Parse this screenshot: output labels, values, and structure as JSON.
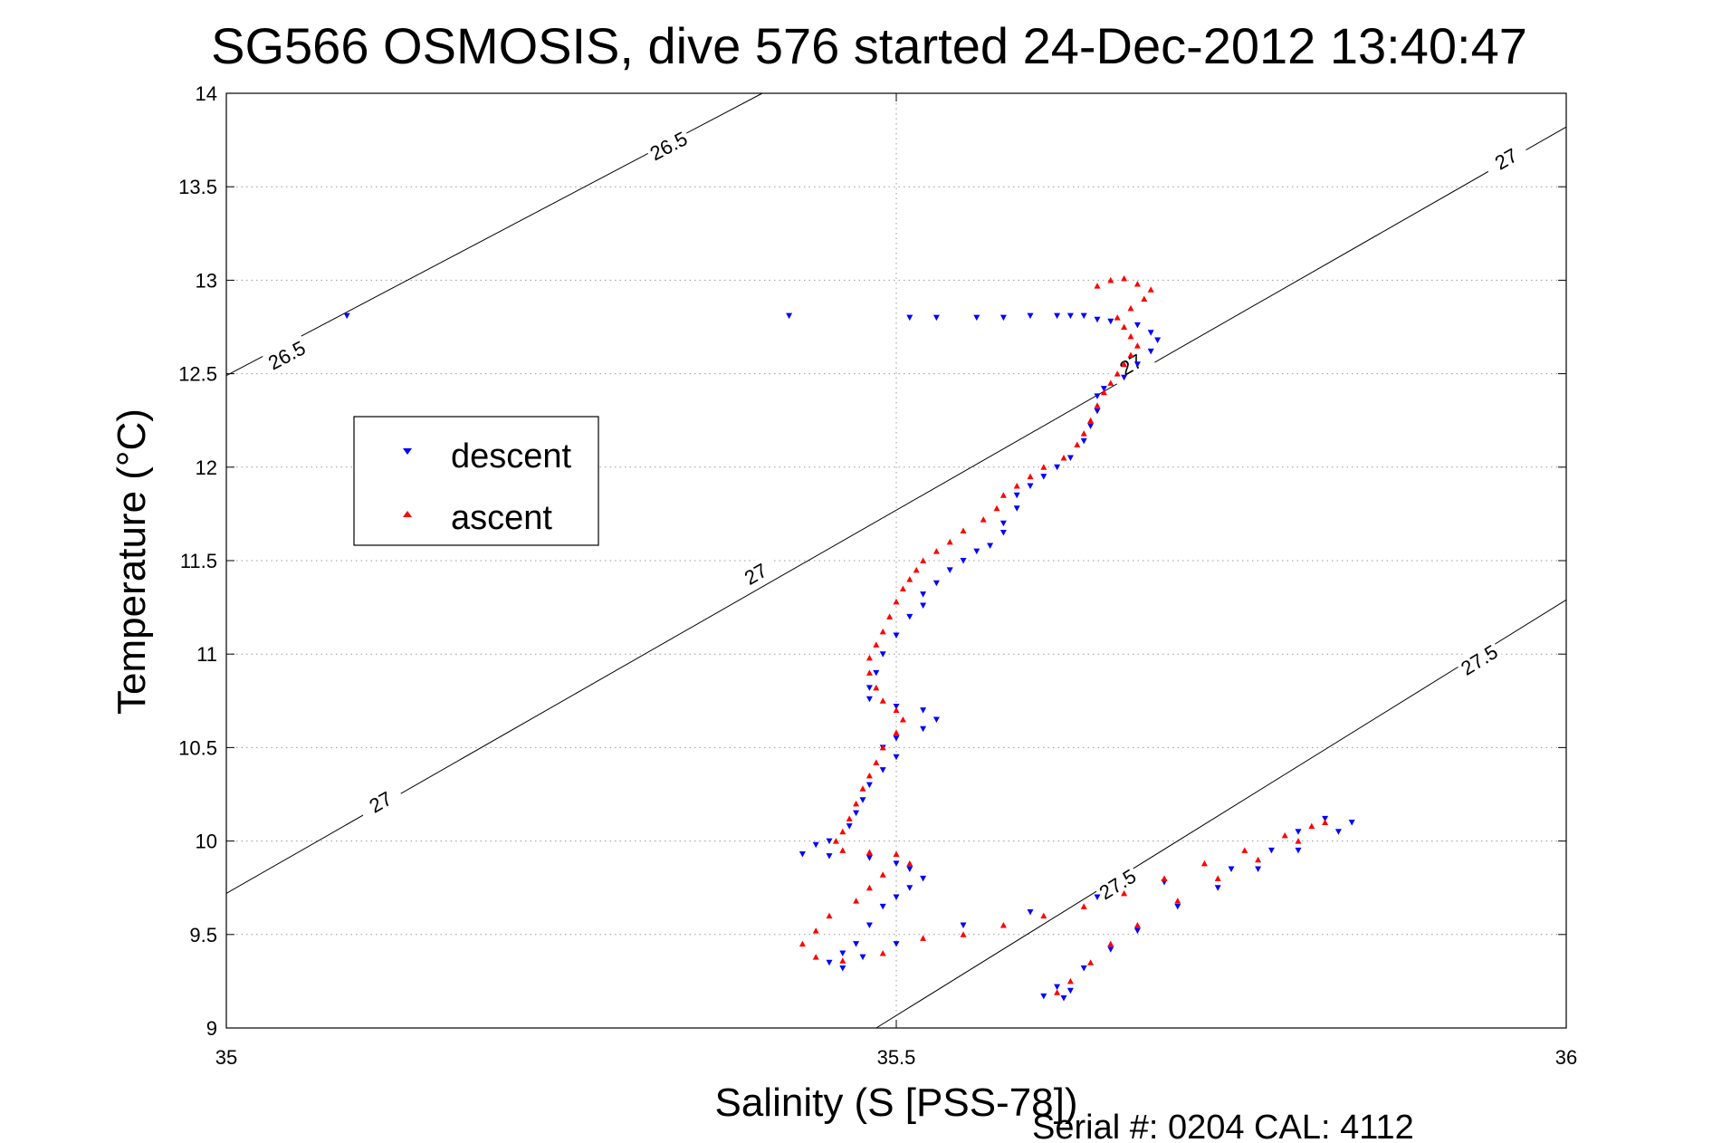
{
  "chart_data": {
    "type": "scatter",
    "title": "SG566 OSMOSIS, dive 576 started 24-Dec-2012 13:40:47",
    "xlabel": "Salinity (S [PSS-78])",
    "ylabel": "Temperature (°C)",
    "footer": "Serial #: 0204  CAL: 4112",
    "xlim": [
      35,
      36
    ],
    "ylim": [
      9,
      14
    ],
    "x_ticks": [
      "35",
      "35.5",
      "36"
    ],
    "y_ticks": [
      "9",
      "9.5",
      "10",
      "10.5",
      "11",
      "11.5",
      "12",
      "12.5",
      "13",
      "13.5",
      "14"
    ],
    "grid": true,
    "legend_position": "left",
    "legend": [
      {
        "label": "descent",
        "color": "#0000ff",
        "marker": "triangle-down"
      },
      {
        "label": "ascent",
        "color": "#ff0000",
        "marker": "triangle-up"
      }
    ],
    "contours": [
      {
        "label": "26.5",
        "line": [
          [
            35.0,
            12.49
          ],
          [
            35.4,
            14.0
          ]
        ],
        "labels_at": [
          [
            35.045,
            12.6
          ],
          [
            35.33,
            13.72
          ]
        ]
      },
      {
        "label": "27",
        "line": [
          [
            35.0,
            9.72
          ],
          [
            36.0,
            13.82
          ]
        ],
        "labels_at": [
          [
            35.115,
            10.21
          ],
          [
            35.395,
            11.43
          ],
          [
            35.675,
            12.55
          ],
          [
            35.955,
            13.65
          ]
        ]
      },
      {
        "label": "27.5",
        "line": [
          [
            35.485,
            9.0
          ],
          [
            36.0,
            11.29
          ]
        ],
        "labels_at": [
          [
            35.665,
            9.77
          ],
          [
            35.935,
            10.97
          ]
        ]
      }
    ],
    "series": [
      {
        "name": "descent",
        "color": "#0000ff",
        "marker": "triangle-down",
        "points": [
          [
            35.09,
            12.81
          ],
          [
            35.42,
            12.81
          ],
          [
            35.51,
            12.8
          ],
          [
            35.53,
            12.8
          ],
          [
            35.56,
            12.8
          ],
          [
            35.58,
            12.8
          ],
          [
            35.6,
            12.81
          ],
          [
            35.62,
            12.81
          ],
          [
            35.63,
            12.81
          ],
          [
            35.64,
            12.81
          ],
          [
            35.65,
            12.79
          ],
          [
            35.66,
            12.78
          ],
          [
            35.68,
            12.76
          ],
          [
            35.69,
            12.72
          ],
          [
            35.695,
            12.68
          ],
          [
            35.69,
            12.62
          ],
          [
            35.68,
            12.55
          ],
          [
            35.67,
            12.48
          ],
          [
            35.655,
            12.42
          ],
          [
            35.65,
            12.38
          ],
          [
            35.65,
            12.3
          ],
          [
            35.645,
            12.22
          ],
          [
            35.64,
            12.14
          ],
          [
            35.63,
            12.05
          ],
          [
            35.62,
            12.0
          ],
          [
            35.61,
            11.95
          ],
          [
            35.6,
            11.9
          ],
          [
            35.59,
            11.85
          ],
          [
            35.59,
            11.78
          ],
          [
            35.58,
            11.7
          ],
          [
            35.58,
            11.65
          ],
          [
            35.57,
            11.58
          ],
          [
            35.56,
            11.55
          ],
          [
            35.55,
            11.5
          ],
          [
            35.54,
            11.45
          ],
          [
            35.53,
            11.38
          ],
          [
            35.52,
            11.32
          ],
          [
            35.52,
            11.26
          ],
          [
            35.51,
            11.2
          ],
          [
            35.5,
            11.1
          ],
          [
            35.49,
            11.0
          ],
          [
            35.485,
            10.9
          ],
          [
            35.48,
            10.82
          ],
          [
            35.48,
            10.76
          ],
          [
            35.5,
            10.72
          ],
          [
            35.52,
            10.7
          ],
          [
            35.53,
            10.65
          ],
          [
            35.52,
            10.6
          ],
          [
            35.5,
            10.55
          ],
          [
            35.49,
            10.5
          ],
          [
            35.5,
            10.45
          ],
          [
            35.49,
            10.38
          ],
          [
            35.48,
            10.3
          ],
          [
            35.475,
            10.22
          ],
          [
            35.47,
            10.15
          ],
          [
            35.465,
            10.08
          ],
          [
            35.45,
            10.0
          ],
          [
            35.44,
            9.98
          ],
          [
            35.43,
            9.93
          ],
          [
            35.45,
            9.92
          ],
          [
            35.48,
            9.91
          ],
          [
            35.5,
            9.88
          ],
          [
            35.51,
            9.85
          ],
          [
            35.52,
            9.8
          ],
          [
            35.51,
            9.75
          ],
          [
            35.5,
            9.7
          ],
          [
            35.49,
            9.65
          ],
          [
            35.48,
            9.55
          ],
          [
            35.47,
            9.45
          ],
          [
            35.46,
            9.4
          ],
          [
            35.45,
            9.35
          ],
          [
            35.46,
            9.32
          ],
          [
            35.475,
            9.38
          ],
          [
            35.5,
            9.45
          ],
          [
            35.55,
            9.55
          ],
          [
            35.6,
            9.62
          ],
          [
            35.65,
            9.7
          ],
          [
            35.7,
            9.78
          ],
          [
            35.75,
            9.85
          ],
          [
            35.78,
            9.95
          ],
          [
            35.8,
            10.05
          ],
          [
            35.82,
            10.12
          ],
          [
            35.84,
            10.1
          ],
          [
            35.83,
            10.05
          ],
          [
            35.8,
            9.95
          ],
          [
            35.77,
            9.85
          ],
          [
            35.74,
            9.75
          ],
          [
            35.71,
            9.65
          ],
          [
            35.68,
            9.52
          ],
          [
            35.66,
            9.42
          ],
          [
            35.64,
            9.32
          ],
          [
            35.62,
            9.22
          ],
          [
            35.61,
            9.17
          ],
          [
            35.625,
            9.16
          ],
          [
            35.63,
            9.2
          ]
        ]
      },
      {
        "name": "ascent",
        "color": "#ff0000",
        "marker": "triangle-up",
        "points": [
          [
            35.65,
            12.97
          ],
          [
            35.66,
            13.0
          ],
          [
            35.67,
            13.01
          ],
          [
            35.68,
            12.98
          ],
          [
            35.69,
            12.95
          ],
          [
            35.685,
            12.9
          ],
          [
            35.675,
            12.85
          ],
          [
            35.665,
            12.8
          ],
          [
            35.67,
            12.75
          ],
          [
            35.675,
            12.7
          ],
          [
            35.68,
            12.65
          ],
          [
            35.675,
            12.6
          ],
          [
            35.67,
            12.55
          ],
          [
            35.665,
            12.5
          ],
          [
            35.66,
            12.45
          ],
          [
            35.655,
            12.4
          ],
          [
            35.65,
            12.33
          ],
          [
            35.645,
            12.25
          ],
          [
            35.64,
            12.18
          ],
          [
            35.635,
            12.12
          ],
          [
            35.625,
            12.05
          ],
          [
            35.61,
            12.0
          ],
          [
            35.6,
            11.95
          ],
          [
            35.59,
            11.9
          ],
          [
            35.58,
            11.85
          ],
          [
            35.575,
            11.78
          ],
          [
            35.565,
            11.72
          ],
          [
            35.55,
            11.66
          ],
          [
            35.54,
            11.6
          ],
          [
            35.53,
            11.55
          ],
          [
            35.52,
            11.5
          ],
          [
            35.515,
            11.45
          ],
          [
            35.51,
            11.4
          ],
          [
            35.505,
            11.35
          ],
          [
            35.5,
            11.28
          ],
          [
            35.495,
            11.2
          ],
          [
            35.49,
            11.12
          ],
          [
            35.485,
            11.05
          ],
          [
            35.48,
            10.98
          ],
          [
            35.48,
            10.9
          ],
          [
            35.485,
            10.82
          ],
          [
            35.49,
            10.75
          ],
          [
            35.5,
            10.7
          ],
          [
            35.505,
            10.65
          ],
          [
            35.5,
            10.58
          ],
          [
            35.49,
            10.5
          ],
          [
            35.485,
            10.42
          ],
          [
            35.48,
            10.35
          ],
          [
            35.475,
            10.28
          ],
          [
            35.47,
            10.2
          ],
          [
            35.465,
            10.12
          ],
          [
            35.46,
            10.05
          ],
          [
            35.455,
            10.0
          ],
          [
            35.46,
            9.95
          ],
          [
            35.48,
            9.94
          ],
          [
            35.5,
            9.93
          ],
          [
            35.51,
            9.88
          ],
          [
            35.49,
            9.82
          ],
          [
            35.48,
            9.75
          ],
          [
            35.47,
            9.68
          ],
          [
            35.45,
            9.6
          ],
          [
            35.44,
            9.52
          ],
          [
            35.43,
            9.45
          ],
          [
            35.44,
            9.38
          ],
          [
            35.46,
            9.36
          ],
          [
            35.49,
            9.4
          ],
          [
            35.52,
            9.48
          ],
          [
            35.55,
            9.5
          ],
          [
            35.58,
            9.55
          ],
          [
            35.61,
            9.6
          ],
          [
            35.64,
            9.65
          ],
          [
            35.67,
            9.72
          ],
          [
            35.7,
            9.8
          ],
          [
            35.73,
            9.88
          ],
          [
            35.76,
            9.95
          ],
          [
            35.79,
            10.03
          ],
          [
            35.81,
            10.08
          ],
          [
            35.82,
            10.1
          ],
          [
            35.8,
            10.0
          ],
          [
            35.77,
            9.9
          ],
          [
            35.74,
            9.8
          ],
          [
            35.71,
            9.68
          ],
          [
            35.68,
            9.55
          ],
          [
            35.66,
            9.45
          ],
          [
            35.645,
            9.35
          ],
          [
            35.63,
            9.25
          ],
          [
            35.62,
            9.19
          ]
        ]
      }
    ]
  }
}
